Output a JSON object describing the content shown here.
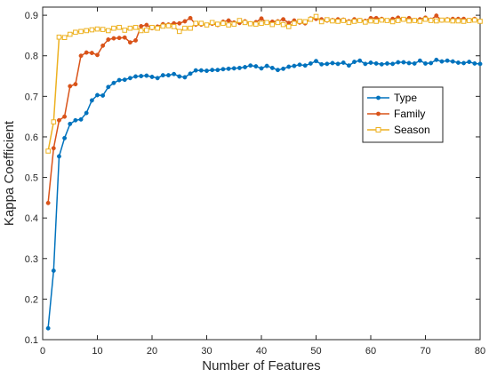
{
  "chart_data": {
    "type": "line",
    "xlabel": "Number of Features",
    "ylabel": "Kappa Coefficient",
    "xlim": [
      0,
      80
    ],
    "ylim": [
      0.1,
      0.92
    ],
    "xticks": [
      0,
      10,
      20,
      30,
      40,
      50,
      60,
      70,
      80
    ],
    "yticks": [
      0.1,
      0.2,
      0.3,
      0.4,
      0.5,
      0.6,
      0.7,
      0.8,
      0.9
    ],
    "grid": false,
    "legend_position": "top-right",
    "x": [
      1,
      2,
      3,
      4,
      5,
      6,
      7,
      8,
      9,
      10,
      11,
      12,
      13,
      14,
      15,
      16,
      17,
      18,
      19,
      20,
      21,
      22,
      23,
      24,
      25,
      26,
      27,
      28,
      29,
      30,
      31,
      32,
      33,
      34,
      35,
      36,
      37,
      38,
      39,
      40,
      41,
      42,
      43,
      44,
      45,
      46,
      47,
      48,
      49,
      50,
      51,
      52,
      53,
      54,
      55,
      56,
      57,
      58,
      59,
      60,
      61,
      62,
      63,
      64,
      65,
      66,
      67,
      68,
      69,
      70,
      71,
      72,
      73,
      74,
      75,
      76,
      77,
      78,
      79,
      80
    ],
    "series": [
      {
        "name": "Type",
        "color": "#0072BD",
        "marker": "dot",
        "values": [
          0.128,
          0.27,
          0.552,
          0.597,
          0.632,
          0.641,
          0.643,
          0.659,
          0.69,
          0.703,
          0.702,
          0.723,
          0.733,
          0.74,
          0.741,
          0.745,
          0.749,
          0.75,
          0.751,
          0.748,
          0.745,
          0.752,
          0.752,
          0.755,
          0.749,
          0.747,
          0.756,
          0.764,
          0.764,
          0.763,
          0.765,
          0.765,
          0.767,
          0.768,
          0.769,
          0.77,
          0.772,
          0.776,
          0.774,
          0.769,
          0.775,
          0.77,
          0.765,
          0.768,
          0.773,
          0.775,
          0.778,
          0.776,
          0.781,
          0.787,
          0.779,
          0.78,
          0.782,
          0.78,
          0.783,
          0.776,
          0.785,
          0.788,
          0.78,
          0.783,
          0.781,
          0.779,
          0.781,
          0.78,
          0.784,
          0.784,
          0.782,
          0.781,
          0.788,
          0.781,
          0.782,
          0.79,
          0.786,
          0.788,
          0.786,
          0.783,
          0.782,
          0.785,
          0.781,
          0.78
        ]
      },
      {
        "name": "Family",
        "color": "#D95319",
        "marker": "dot",
        "values": [
          0.437,
          0.572,
          0.641,
          0.65,
          0.725,
          0.73,
          0.8,
          0.808,
          0.807,
          0.802,
          0.825,
          0.84,
          0.843,
          0.844,
          0.845,
          0.833,
          0.838,
          0.873,
          0.876,
          0.868,
          0.872,
          0.878,
          0.877,
          0.88,
          0.88,
          0.885,
          0.893,
          0.877,
          0.877,
          0.876,
          0.879,
          0.876,
          0.884,
          0.887,
          0.882,
          0.881,
          0.885,
          0.88,
          0.883,
          0.892,
          0.882,
          0.884,
          0.885,
          0.89,
          0.881,
          0.887,
          0.882,
          0.88,
          0.892,
          0.891,
          0.89,
          0.887,
          0.888,
          0.89,
          0.889,
          0.885,
          0.89,
          0.888,
          0.886,
          0.893,
          0.893,
          0.891,
          0.887,
          0.891,
          0.894,
          0.89,
          0.893,
          0.888,
          0.89,
          0.894,
          0.889,
          0.899,
          0.887,
          0.89,
          0.891,
          0.891,
          0.891,
          0.888,
          0.891,
          0.885
        ]
      },
      {
        "name": "Season",
        "color": "#EDB120",
        "marker": "square",
        "values": [
          0.565,
          0.637,
          0.846,
          0.845,
          0.853,
          0.858,
          0.86,
          0.862,
          0.864,
          0.866,
          0.865,
          0.862,
          0.868,
          0.87,
          0.863,
          0.868,
          0.87,
          0.862,
          0.863,
          0.87,
          0.868,
          0.873,
          0.874,
          0.872,
          0.86,
          0.868,
          0.868,
          0.88,
          0.88,
          0.876,
          0.882,
          0.878,
          0.88,
          0.876,
          0.878,
          0.887,
          0.882,
          0.879,
          0.878,
          0.88,
          0.882,
          0.877,
          0.882,
          0.877,
          0.872,
          0.88,
          0.885,
          0.884,
          0.89,
          0.897,
          0.884,
          0.889,
          0.886,
          0.885,
          0.887,
          0.882,
          0.885,
          0.887,
          0.883,
          0.886,
          0.885,
          0.888,
          0.887,
          0.884,
          0.887,
          0.89,
          0.886,
          0.887,
          0.885,
          0.89,
          0.887,
          0.886,
          0.888,
          0.888,
          0.886,
          0.886,
          0.885,
          0.887,
          0.888,
          0.885
        ]
      }
    ]
  }
}
